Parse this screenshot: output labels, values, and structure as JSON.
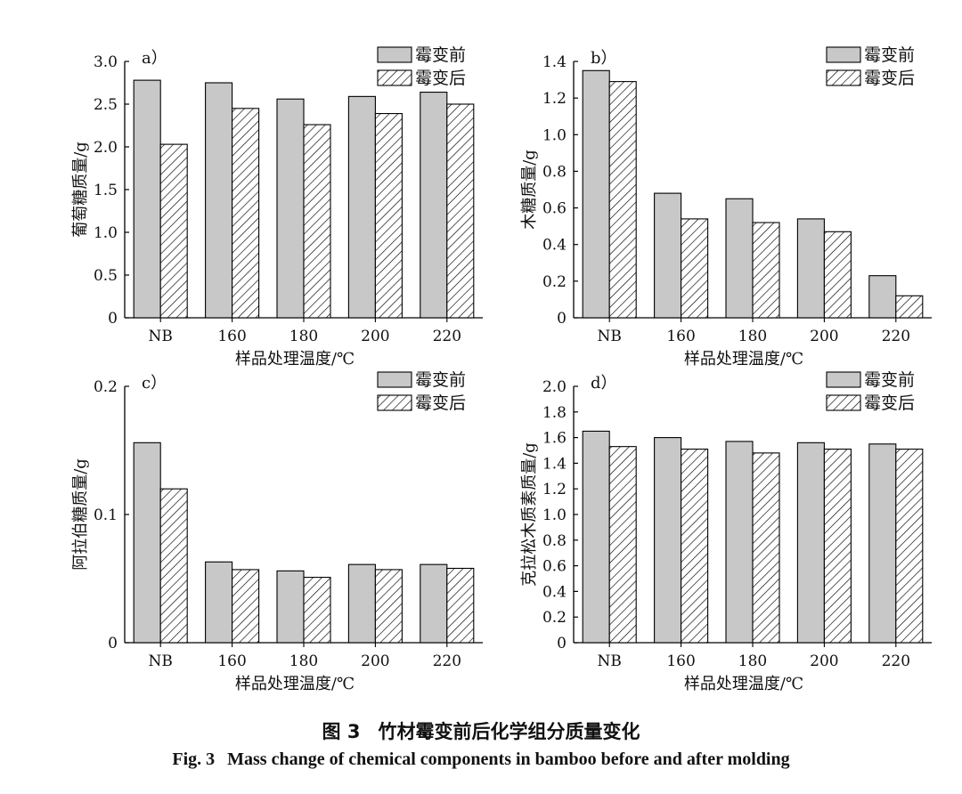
{
  "caption": {
    "zh_number": "图 3",
    "zh_text": "竹材霉变前后化学组分质量变化",
    "en_number": "Fig. 3",
    "en_text": "Mass change of chemical components in bamboo before and after molding"
  },
  "colors": {
    "before": "#c8c8c8",
    "after_hatch": "#000000",
    "axis": "#000000"
  },
  "chart_data": [
    {
      "type": "bar",
      "panel_label": "a）",
      "categories": [
        "NB",
        "160",
        "180",
        "200",
        "220"
      ],
      "series": [
        {
          "name": "霉变前",
          "values": [
            2.78,
            2.75,
            2.56,
            2.59,
            2.64
          ]
        },
        {
          "name": "霉变后",
          "values": [
            2.03,
            2.45,
            2.26,
            2.39,
            2.5
          ]
        }
      ],
      "xlabel": "样品处理温度/℃",
      "ylabel": "葡萄糖质量/g",
      "ylim": [
        0,
        3.0
      ],
      "yticks": [
        "0",
        "0.5",
        "1.0",
        "1.5",
        "2.0",
        "2.5",
        "3.0"
      ],
      "legend": "top-right",
      "grid": false
    },
    {
      "type": "bar",
      "panel_label": "b）",
      "categories": [
        "NB",
        "160",
        "180",
        "200",
        "220"
      ],
      "series": [
        {
          "name": "霉变前",
          "values": [
            1.35,
            0.68,
            0.65,
            0.54,
            0.23
          ]
        },
        {
          "name": "霉变后",
          "values": [
            1.29,
            0.54,
            0.52,
            0.47,
            0.12
          ]
        }
      ],
      "xlabel": "样品处理温度/℃",
      "ylabel": "木糖质量/g",
      "ylim": [
        0,
        1.4
      ],
      "yticks": [
        "0",
        "0.2",
        "0.4",
        "0.6",
        "0.8",
        "1.0",
        "1.2",
        "1.4"
      ],
      "legend": "top-right",
      "grid": false
    },
    {
      "type": "bar",
      "panel_label": "c）",
      "categories": [
        "NB",
        "160",
        "180",
        "200",
        "220"
      ],
      "series": [
        {
          "name": "霉变前",
          "values": [
            0.156,
            0.063,
            0.056,
            0.061,
            0.061
          ]
        },
        {
          "name": "霉变后",
          "values": [
            0.12,
            0.057,
            0.051,
            0.057,
            0.058
          ]
        }
      ],
      "xlabel": "样品处理温度/℃",
      "ylabel": "阿拉伯糖质量/g",
      "ylim": [
        0,
        0.2
      ],
      "yticks": [
        "0",
        "0.1",
        "0.2"
      ],
      "legend": "top-right",
      "grid": false
    },
    {
      "type": "bar",
      "panel_label": "d）",
      "categories": [
        "NB",
        "160",
        "180",
        "200",
        "220"
      ],
      "series": [
        {
          "name": "霉变前",
          "values": [
            1.65,
            1.6,
            1.57,
            1.56,
            1.55
          ]
        },
        {
          "name": "霉变后",
          "values": [
            1.53,
            1.51,
            1.48,
            1.51,
            1.51
          ]
        }
      ],
      "xlabel": "样品处理温度/℃",
      "ylabel": "克拉松木质素质量/g",
      "ylim": [
        0,
        2.0
      ],
      "yticks": [
        "0",
        "0.2",
        "0.4",
        "0.6",
        "0.8",
        "1.0",
        "1.2",
        "1.4",
        "1.6",
        "1.8",
        "2.0"
      ],
      "legend": "top-right",
      "grid": false
    }
  ]
}
